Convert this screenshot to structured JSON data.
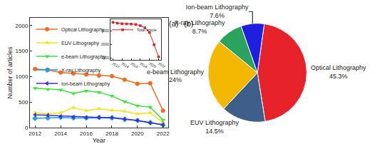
{
  "chart_data": [
    {
      "type": "line",
      "annotations": [
        "(a)"
      ],
      "xlabel": "Year",
      "ylabel": "Number of articles",
      "x": [
        2012,
        2013,
        2014,
        2015,
        2016,
        2017,
        2018,
        2019,
        2020,
        2021,
        2022
      ],
      "xlim": [
        2011.6,
        2022.4
      ],
      "xticks": [
        2012,
        2014,
        2016,
        2018,
        2020,
        2022
      ],
      "ylim": [
        0,
        2150
      ],
      "yticks": [
        0,
        500,
        1000,
        1500,
        2000
      ],
      "legend": "upper left",
      "series": [
        {
          "name": "Optical Lithography",
          "color": "#f26b21",
          "marker": "circle",
          "values": [
            1150,
            1130,
            1080,
            1060,
            1040,
            1020,
            1010,
            940,
            860,
            870,
            330
          ]
        },
        {
          "name": "EUV Lithography",
          "color": "#f2e41b",
          "marker": "triangle-up",
          "values": [
            290,
            270,
            290,
            390,
            330,
            370,
            340,
            320,
            270,
            290,
            100
          ]
        },
        {
          "name": "e-beam Lithography",
          "color": "#39e639",
          "marker": "triangle-down",
          "values": [
            770,
            750,
            740,
            670,
            720,
            690,
            620,
            510,
            430,
            400,
            150
          ]
        },
        {
          "name": "X-ray Lithography",
          "color": "#1f9bf0",
          "marker": "diamond",
          "values": [
            180,
            190,
            200,
            190,
            190,
            200,
            190,
            160,
            140,
            100,
            50
          ]
        },
        {
          "name": "Ion-beam Lithography",
          "color": "#3a2fd0",
          "marker": "triangle-left",
          "values": [
            250,
            240,
            220,
            210,
            200,
            200,
            200,
            170,
            140,
            90,
            60
          ]
        }
      ]
    },
    {
      "type": "line",
      "x": [
        2012,
        2013,
        2014,
        2015,
        2016,
        2017,
        2018,
        2019,
        2020,
        2021,
        2022
      ],
      "xlim": [
        2011.5,
        2022.5
      ],
      "xticks": [
        2012,
        2014,
        2016,
        2018,
        2020,
        2022
      ],
      "ylim": [
        900,
        3900
      ],
      "yticks": [
        1000,
        2000,
        3000
      ],
      "legend": "upper right",
      "series": [
        {
          "name": "Total article",
          "color": "#e02020",
          "marker": "square",
          "values": [
            3650,
            3580,
            3550,
            3540,
            3520,
            3500,
            3400,
            3250,
            2900,
            2000,
            1100
          ]
        }
      ]
    },
    {
      "type": "pie",
      "annotations": [
        "(b)"
      ],
      "categories": [
        "Optical Lithography",
        "EUV Lithography",
        "e-beam Lithography",
        "X-ray Lithography",
        "Ion-beam Lithography"
      ],
      "values": [
        45.3,
        14.5,
        24,
        8.7,
        7.6
      ],
      "value_labels": [
        "45.3%",
        "14.5%",
        "24%",
        "8.7%",
        "7.6%"
      ],
      "colors": [
        "#e8222a",
        "#3e5f8a",
        "#f5b800",
        "#2ca25f",
        "#1f1fe0"
      ]
    }
  ]
}
